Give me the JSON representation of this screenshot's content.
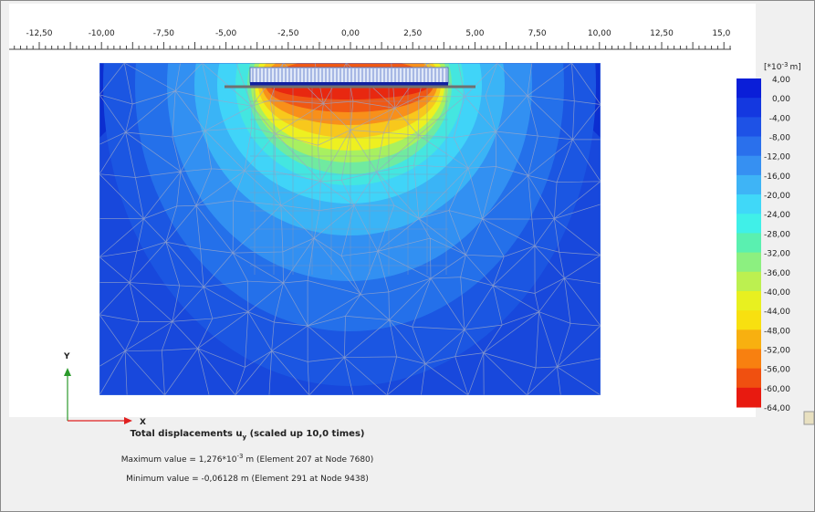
{
  "ruler": {
    "labels": [
      "-12,50",
      "-10,00",
      "-7,50",
      "-5,00",
      "-2,50",
      "0,00",
      "2,50",
      "5,00",
      "7,50",
      "10,00",
      "12,50",
      "15,00"
    ]
  },
  "axes": {
    "y": "Y",
    "x": "X"
  },
  "legend": {
    "unit_prefix": "[*10",
    "unit_exp": "-3",
    "unit_suffix": "m]",
    "labels": [
      "4,00",
      "0,00",
      "-4,00",
      "-8,00",
      "-12,00",
      "-16,00",
      "-20,00",
      "-24,00",
      "-28,00",
      "-32,00",
      "-36,00",
      "-40,00",
      "-44,00",
      "-48,00",
      "-52,00",
      "-56,00",
      "-60,00",
      "-64,00"
    ]
  },
  "caption": {
    "title": "Total displacements u",
    "title_sub": "y",
    "title_suffix": "(scaled up 10,0 times)",
    "max_prefix": "Maximum value = 1,276*10",
    "max_exp": "-3",
    "max_suffix": "m (Element 207 at Node 7680)",
    "min": "Minimum value = -0,06128 m (Element 291 at Node 9438)"
  }
}
